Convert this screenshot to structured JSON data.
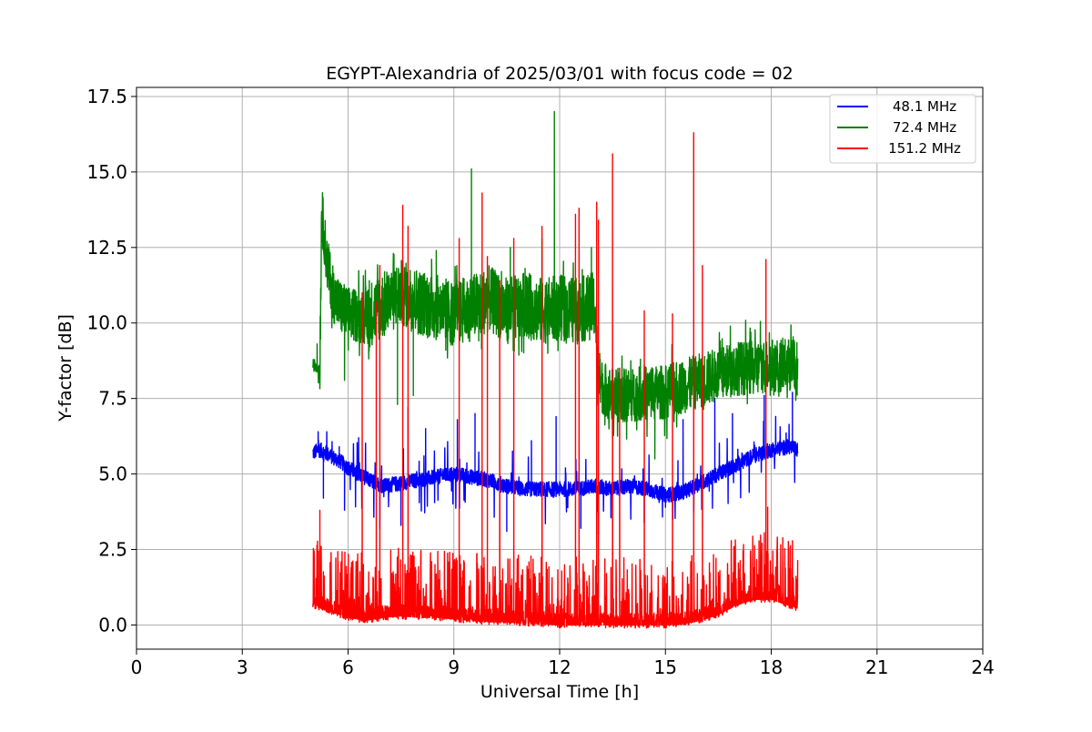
{
  "chart_data": {
    "type": "line",
    "title": "EGYPT-Alexandria of 2025/03/01 with focus code = 02",
    "xlabel": "Universal Time [h]",
    "ylabel": "Y-factor [dB]",
    "xlim": [
      0,
      24
    ],
    "ylim": [
      -0.8,
      17.8
    ],
    "xticks": [
      0,
      3,
      6,
      9,
      12,
      15,
      18,
      21,
      24
    ],
    "yticks": [
      0.0,
      2.5,
      5.0,
      7.5,
      10.0,
      12.5,
      15.0,
      17.5
    ],
    "xtick_labels": [
      "0",
      "3",
      "6",
      "9",
      "12",
      "15",
      "18",
      "21",
      "24"
    ],
    "ytick_labels": [
      "0.0",
      "2.5",
      "5.0",
      "7.5",
      "10.0",
      "12.5",
      "15.0",
      "17.5"
    ],
    "grid": true,
    "legend_position": "top-right",
    "series": [
      {
        "name": "48.1 MHz",
        "color": "#0000ff",
        "x": [
          5.0,
          5.2,
          5.5,
          5.8,
          6.0,
          6.3,
          6.6,
          7.0,
          7.5,
          8.0,
          8.5,
          9.0,
          9.5,
          10.0,
          10.5,
          11.0,
          11.5,
          12.0,
          12.5,
          13.0,
          13.5,
          14.0,
          14.5,
          15.0,
          15.5,
          16.0,
          16.5,
          17.0,
          17.5,
          18.0,
          18.5,
          18.75
        ],
        "values": [
          5.7,
          5.8,
          5.6,
          5.4,
          5.2,
          5.0,
          4.8,
          4.6,
          4.7,
          4.8,
          4.9,
          5.0,
          4.9,
          4.8,
          4.6,
          4.5,
          4.5,
          4.5,
          4.5,
          4.6,
          4.5,
          4.6,
          4.5,
          4.3,
          4.4,
          4.7,
          5.0,
          5.3,
          5.6,
          5.8,
          5.9,
          5.8
        ],
        "spikes": [
          [
            5.15,
            6.4
          ],
          [
            5.3,
            4.2
          ],
          [
            5.75,
            5.9
          ],
          [
            5.9,
            3.8
          ],
          [
            6.3,
            6.2
          ],
          [
            6.9,
            3.2
          ],
          [
            7.5,
            3.3
          ],
          [
            7.7,
            7.2
          ],
          [
            8.2,
            6.5
          ],
          [
            9.1,
            6.8
          ],
          [
            9.6,
            7.0
          ],
          [
            10.5,
            3.1
          ],
          [
            11.2,
            6.1
          ],
          [
            11.9,
            6.9
          ],
          [
            12.6,
            3.2
          ],
          [
            13.1,
            3.0
          ],
          [
            14.4,
            3.4
          ],
          [
            15.0,
            3.9
          ],
          [
            15.5,
            6.8
          ],
          [
            16.4,
            7.5
          ],
          [
            16.9,
            7.0
          ],
          [
            17.8,
            7.6
          ],
          [
            18.6,
            7.7
          ]
        ]
      },
      {
        "name": "72.4 MHz",
        "color": "#008000",
        "x": [
          5.0,
          5.1,
          5.2,
          5.25,
          5.4,
          5.6,
          5.8,
          6.0,
          6.5,
          7.0,
          7.5,
          8.0,
          8.5,
          9.0,
          9.5,
          10.0,
          10.5,
          11.0,
          11.5,
          12.0,
          12.5,
          13.0,
          13.1,
          13.5,
          14.0,
          14.5,
          15.0,
          15.5,
          16.0,
          16.5,
          17.0,
          17.5,
          18.0,
          18.5,
          18.75
        ],
        "values": [
          8.6,
          8.6,
          8.5,
          13.7,
          12.0,
          10.9,
          10.5,
          10.3,
          10.2,
          10.6,
          11.0,
          10.7,
          10.5,
          10.3,
          10.5,
          10.8,
          10.4,
          10.6,
          10.4,
          10.5,
          10.4,
          10.6,
          8.0,
          7.6,
          7.6,
          7.7,
          7.7,
          7.9,
          8.1,
          8.3,
          8.5,
          8.5,
          8.6,
          8.6,
          8.5
        ],
        "spikes": [
          [
            5.9,
            8.1
          ],
          [
            6.6,
            11.4
          ],
          [
            7.4,
            7.3
          ],
          [
            7.85,
            7.6
          ],
          [
            8.5,
            12.4
          ],
          [
            9.5,
            15.1
          ],
          [
            10.6,
            12.5
          ],
          [
            11.5,
            12.8
          ],
          [
            11.85,
            17.0
          ],
          [
            12.9,
            12.5
          ],
          [
            13.5,
            6.2
          ],
          [
            14.7,
            5.5
          ]
        ]
      },
      {
        "name": "151.2 MHz",
        "color": "#ff0000",
        "x": [
          5.0,
          5.5,
          6.0,
          6.5,
          7.0,
          7.5,
          8.0,
          8.5,
          9.0,
          9.5,
          10.0,
          10.5,
          11.0,
          11.5,
          12.0,
          12.5,
          13.0,
          13.5,
          14.0,
          14.5,
          15.0,
          15.5,
          16.0,
          16.5,
          17.0,
          17.5,
          18.0,
          18.5,
          18.75
        ],
        "values": [
          0.7,
          0.5,
          0.3,
          0.2,
          0.3,
          0.35,
          0.3,
          0.3,
          0.25,
          0.2,
          0.15,
          0.15,
          0.1,
          0.1,
          0.05,
          0.05,
          0.05,
          0.05,
          0.05,
          0.05,
          0.05,
          0.1,
          0.2,
          0.4,
          0.7,
          0.9,
          0.9,
          0.7,
          0.6
        ],
        "spikes": [
          [
            5.2,
            3.8
          ],
          [
            6.4,
            11.0
          ],
          [
            6.8,
            10.7
          ],
          [
            6.9,
            11.9
          ],
          [
            7.55,
            13.9
          ],
          [
            7.7,
            13.2
          ],
          [
            9.15,
            12.8
          ],
          [
            9.8,
            14.3
          ],
          [
            9.95,
            12.2
          ],
          [
            10.3,
            11.4
          ],
          [
            10.7,
            12.8
          ],
          [
            11.5,
            13.2
          ],
          [
            12.45,
            13.6
          ],
          [
            12.55,
            13.8
          ],
          [
            13.05,
            14.0
          ],
          [
            13.1,
            13.4
          ],
          [
            13.5,
            15.6
          ],
          [
            13.7,
            8.5
          ],
          [
            14.4,
            10.4
          ],
          [
            15.2,
            10.3
          ],
          [
            15.8,
            16.3
          ],
          [
            16.05,
            11.9
          ],
          [
            17.85,
            12.1
          ],
          [
            17.9,
            3.9
          ]
        ]
      }
    ]
  }
}
